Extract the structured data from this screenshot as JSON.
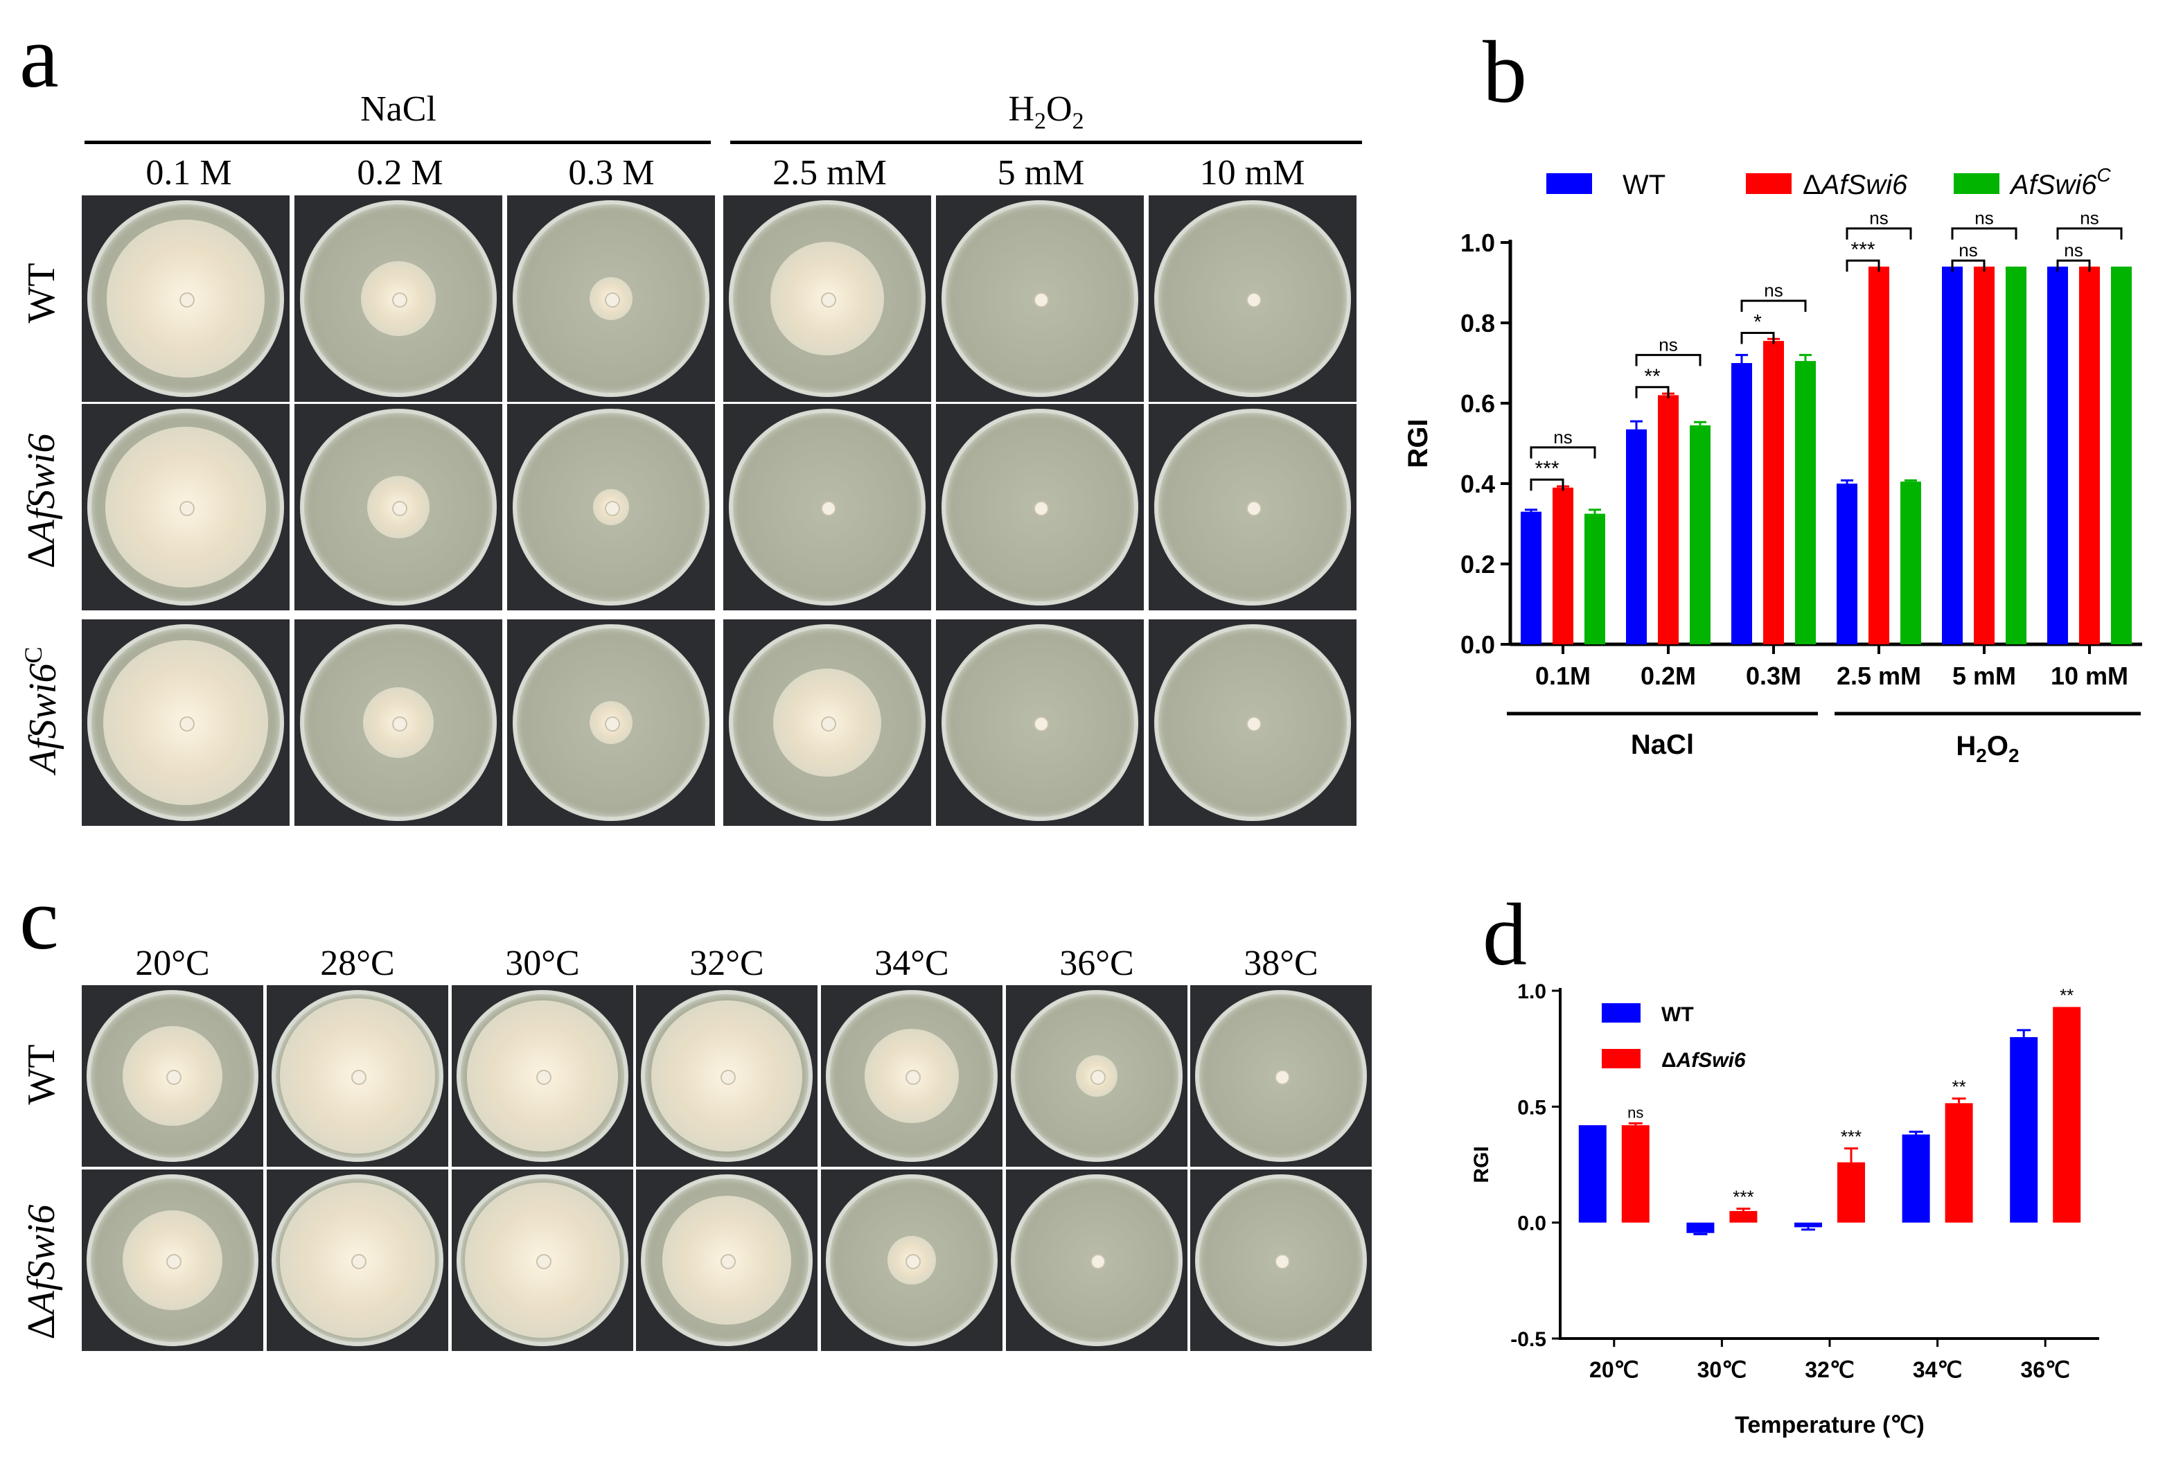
{
  "panels": [
    {
      "id": "a",
      "label": "a"
    },
    {
      "id": "b",
      "label": "b"
    },
    {
      "id": "c",
      "label": "c"
    },
    {
      "id": "d",
      "label": "d"
    }
  ],
  "panel_a": {
    "groups": [
      {
        "label": "NaCl",
        "columns": [
          "0.1 M",
          "0.2 M",
          "0.3 M"
        ]
      },
      {
        "label_main": "H",
        "label_sub1": "2",
        "label_mid": "O",
        "label_sub2": "2",
        "columns": [
          "2.5 mM",
          "5 mM",
          "10 mM"
        ]
      }
    ],
    "rows": [
      {
        "label": "WT",
        "colony_frac": [
          0.8,
          0.38,
          0.22,
          0.58,
          0.0,
          0.0
        ]
      },
      {
        "label_delta": "Δ",
        "label_italic": "AfSwi6",
        "colony_frac": [
          0.82,
          0.32,
          0.18,
          0.0,
          0.0,
          0.0
        ]
      },
      {
        "label_italic": "AfSwi6",
        "label_sup": "C",
        "colony_frac": [
          0.84,
          0.36,
          0.22,
          0.55,
          0.0,
          0.0
        ]
      }
    ]
  },
  "panel_c": {
    "columns": [
      "20°C",
      "28°C",
      "30°C",
      "32°C",
      "34°C",
      "36°C",
      "38°C"
    ],
    "rows": [
      {
        "label": "WT",
        "colony_frac": [
          0.58,
          0.9,
          0.88,
          0.88,
          0.55,
          0.24,
          0.0
        ]
      },
      {
        "label_delta": "Δ",
        "label_italic": "AfSwi6",
        "colony_frac": [
          0.58,
          0.9,
          0.9,
          0.75,
          0.28,
          0.0,
          0.0
        ]
      }
    ]
  },
  "colors": {
    "wt": "#0000ff",
    "mutant": "#ff0000",
    "complement": "#00b400",
    "tile_bg": "#2c2d31",
    "agar": "#b9bca8"
  },
  "chart_data": [
    {
      "id": "b",
      "type": "bar",
      "ylabel": "RGI",
      "ylim": [
        0,
        1.0
      ],
      "yticks": [
        "0.0",
        "0.2",
        "0.4",
        "0.6",
        "0.8",
        "1.0"
      ],
      "categories": [
        "0.1M",
        "0.2M",
        "0.3M",
        "2.5 mM",
        "5 mM",
        "10 mM"
      ],
      "group_labels": [
        {
          "label": "NaCl"
        },
        {
          "label_main": "H",
          "label_sub1": "2",
          "label_mid": "O",
          "label_sub2": "2"
        }
      ],
      "legend": {
        "position": "top",
        "entries": [
          {
            "label": "WT"
          },
          {
            "label_delta": "Δ",
            "label_italic": "AfSwi6"
          },
          {
            "label_italic": "AfSwi6",
            "label_sup": "C"
          }
        ]
      },
      "series": [
        {
          "values": [
            0.33,
            0.535,
            0.7,
            0.4,
            0.94,
            0.94
          ],
          "errors": [
            0.005,
            0.02,
            0.02,
            0.008,
            0,
            0
          ]
        },
        {
          "values": [
            0.39,
            0.62,
            0.755,
            0.94,
            0.94,
            0.94
          ],
          "errors": [
            0.003,
            0.004,
            0.005,
            0,
            0,
            0
          ]
        },
        {
          "values": [
            0.325,
            0.545,
            0.705,
            0.405,
            0.94,
            0.94
          ],
          "errors": [
            0.01,
            0.008,
            0.015,
            0.003,
            0,
            0
          ]
        }
      ],
      "annotations": [
        {
          "cat": 0,
          "pair": [
            0,
            1
          ],
          "text": "***",
          "y": 0.41
        },
        {
          "cat": 0,
          "pair": [
            0,
            2
          ],
          "text": "ns",
          "y": 0.49
        },
        {
          "cat": 1,
          "pair": [
            0,
            1
          ],
          "text": "**",
          "y": 0.64
        },
        {
          "cat": 1,
          "pair": [
            0,
            2
          ],
          "text": "ns",
          "y": 0.72
        },
        {
          "cat": 2,
          "pair": [
            0,
            1
          ],
          "text": "*",
          "y": 0.775
        },
        {
          "cat": 2,
          "pair": [
            0,
            2
          ],
          "text": "ns",
          "y": 0.855
        },
        {
          "cat": 3,
          "pair": [
            0,
            1
          ],
          "text": "***",
          "y": 0.955
        },
        {
          "cat": 3,
          "pair": [
            0,
            2
          ],
          "text": "ns",
          "y": 1.035
        },
        {
          "cat": 4,
          "pair": [
            0,
            1
          ],
          "text": "ns",
          "y": 0.955
        },
        {
          "cat": 4,
          "pair": [
            0,
            2
          ],
          "text": "ns",
          "y": 1.035
        },
        {
          "cat": 5,
          "pair": [
            0,
            1
          ],
          "text": "ns",
          "y": 0.955
        },
        {
          "cat": 5,
          "pair": [
            0,
            2
          ],
          "text": "ns",
          "y": 1.035
        }
      ]
    },
    {
      "id": "d",
      "type": "bar",
      "ylabel": "RGI",
      "xlabel": "Temperature (℃)",
      "ylim": [
        -0.5,
        1.0
      ],
      "yticks": [
        "-0.5",
        "0.0",
        "0.5",
        "1.0"
      ],
      "categories": [
        "20℃",
        "30℃",
        "32℃",
        "34℃",
        "36℃"
      ],
      "legend": {
        "position": "top-left",
        "entries": [
          {
            "label": "WT"
          },
          {
            "label_delta": "Δ",
            "label_italic": "AfSwi6"
          }
        ]
      },
      "series": [
        {
          "values": [
            0.42,
            -0.045,
            -0.02,
            0.38,
            0.8
          ],
          "errors": [
            0,
            0.005,
            0.01,
            0.012,
            0.03
          ]
        },
        {
          "values": [
            0.42,
            0.05,
            0.26,
            0.515,
            0.93
          ],
          "errors": [
            0.008,
            0.01,
            0.06,
            0.02,
            0
          ]
        }
      ],
      "annotations": [
        {
          "cat": 0,
          "text": "ns"
        },
        {
          "cat": 1,
          "text": "***"
        },
        {
          "cat": 2,
          "text": "***"
        },
        {
          "cat": 3,
          "text": "**"
        },
        {
          "cat": 4,
          "text": "**"
        }
      ]
    }
  ]
}
